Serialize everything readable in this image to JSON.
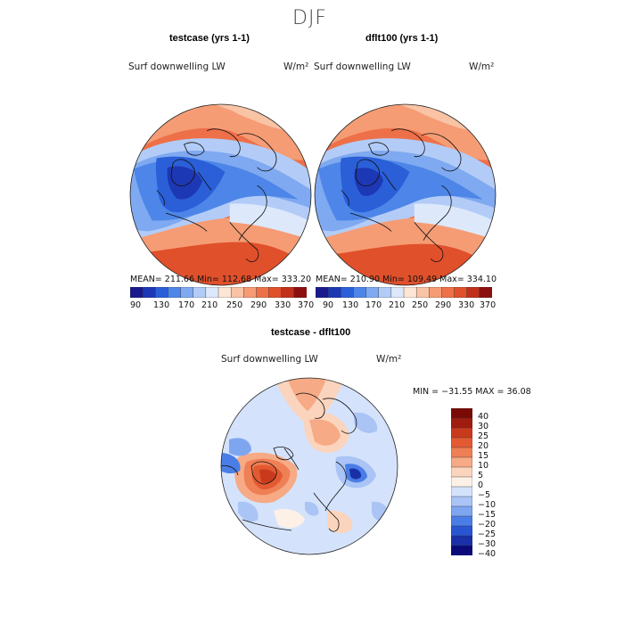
{
  "page": {
    "title": "DJF"
  },
  "colors": {
    "abs_scale": [
      "#1a1a8c",
      "#1d38b4",
      "#2a5fd8",
      "#4d86e8",
      "#7fa9f0",
      "#b3ccf7",
      "#dde9fb",
      "#fde6d6",
      "#f9c3a5",
      "#f59c74",
      "#ee7049",
      "#e0502b",
      "#c0301a",
      "#8b0f0f"
    ],
    "diff_scale": [
      "#0a0a7a",
      "#1930a8",
      "#2a55d2",
      "#4a7de6",
      "#7ea6f0",
      "#a9c4f5",
      "#d4e3fb",
      "#fdf0e6",
      "#fbd4bd",
      "#f6aa85",
      "#ef7f55",
      "#e35a32",
      "#c93a1c",
      "#a01c0e",
      "#7a0a06"
    ],
    "map_blue_deep": "#2f5fd8",
    "map_blue": "#5a89ea",
    "map_blue_light": "#9fbdf3",
    "map_red": "#ee6a3e",
    "map_orange": "#f59c74",
    "map_peach": "#fbd3bd"
  },
  "chart_data": [
    {
      "type": "heatmap",
      "projection": "north-polar-stereographic",
      "title": "testcase (yrs 1-1)",
      "variable": "Surf downwelling LW",
      "units": "W/m²",
      "stats": {
        "mean": "211.66",
        "min": "112.68",
        "max": "333.20"
      },
      "stats_text": "MEAN= 211.66   Min= 112.68   Max= 333.20",
      "colorbar": {
        "levels": [
          90,
          110,
          130,
          150,
          170,
          190,
          210,
          230,
          250,
          270,
          290,
          310,
          330,
          350,
          370
        ],
        "tick_labels": [
          "90",
          "130",
          "170",
          "210",
          "250",
          "290",
          "330",
          "370"
        ]
      }
    },
    {
      "type": "heatmap",
      "projection": "north-polar-stereographic",
      "title": "dflt100 (yrs 1-1)",
      "variable": "Surf downwelling LW",
      "units": "W/m²",
      "stats": {
        "mean": "210.90",
        "min": "109.49",
        "max": "334.10"
      },
      "stats_text": "MEAN= 210.90   Min= 109.49   Max= 334.10",
      "colorbar": {
        "levels": [
          90,
          110,
          130,
          150,
          170,
          190,
          210,
          230,
          250,
          270,
          290,
          310,
          330,
          350,
          370
        ],
        "tick_labels": [
          "90",
          "130",
          "170",
          "210",
          "250",
          "290",
          "330",
          "370"
        ]
      }
    },
    {
      "type": "heatmap",
      "projection": "north-polar-stereographic",
      "title": "testcase - dflt100",
      "variable": "Surf downwelling LW",
      "units": "W/m²",
      "stats": {
        "min": "-31.55",
        "max": "36.08"
      },
      "stats_text": "MIN = −31.55 MAX =  36.08",
      "colorbar": {
        "orientation": "vertical",
        "tick_labels": [
          "40",
          "30",
          "25",
          "20",
          "15",
          "10",
          "5",
          "0",
          "−5",
          "−10",
          "−15",
          "−20",
          "−25",
          "−30",
          "−40"
        ]
      }
    }
  ]
}
